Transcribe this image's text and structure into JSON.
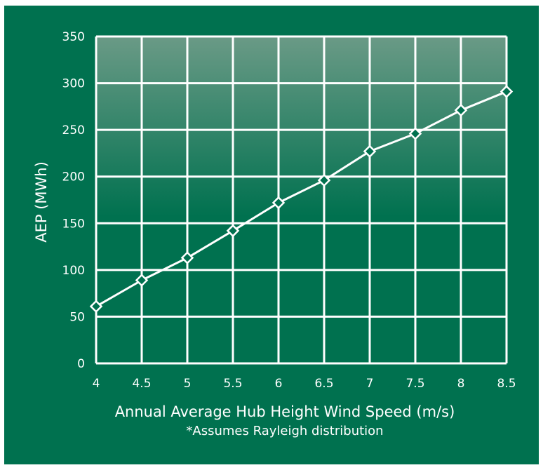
{
  "colors": {
    "background": "#00714f",
    "plot_gradient_top": "#6a9a86",
    "plot_gradient_mid": "#00714f",
    "grid": "#ffffff",
    "line": "#ffffff",
    "marker": "#00714f"
  },
  "chart_data": {
    "type": "line",
    "title": "",
    "xlabel": "Annual Average Hub Height Wind Speed (m/s)",
    "ylabel": "AEP (MWh)",
    "note": "*Assumes Rayleigh distribution",
    "x": [
      4,
      4.5,
      5,
      5.5,
      6,
      6.5,
      7,
      7.5,
      8,
      8.5
    ],
    "x_tick_labels": [
      "4",
      "4.5",
      "5",
      "5.5",
      "6",
      "6.5",
      "7",
      "7.5",
      "8",
      "8.5"
    ],
    "y_ticks": [
      0,
      50,
      100,
      150,
      200,
      250,
      300,
      350
    ],
    "y_tick_labels": [
      "0",
      "50",
      "100",
      "150",
      "200",
      "250",
      "300",
      "350"
    ],
    "xlim": [
      4,
      8.5
    ],
    "ylim": [
      0,
      350
    ],
    "grid": true,
    "legend": "none",
    "series": [
      {
        "values": [
          61,
          89,
          113,
          142,
          172,
          196,
          227,
          246,
          271,
          291
        ],
        "marker": "diamond"
      }
    ]
  }
}
